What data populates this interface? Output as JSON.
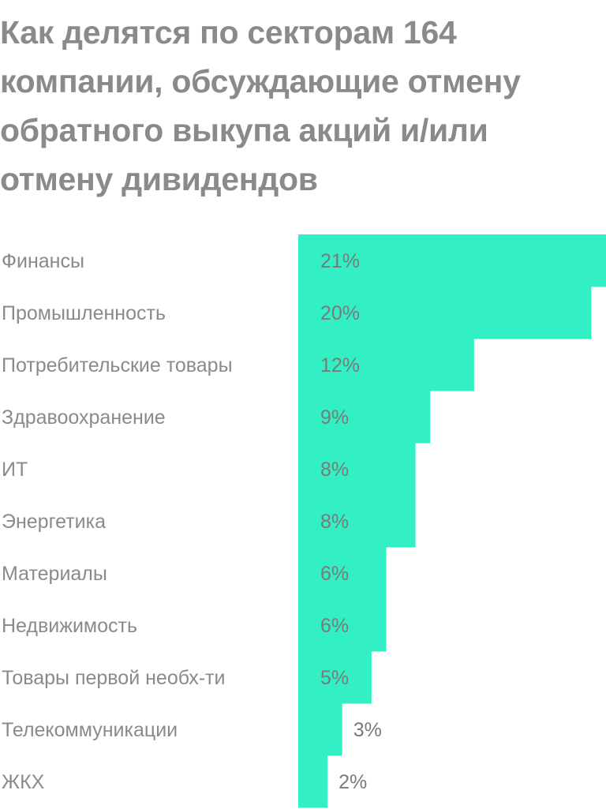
{
  "title": "Как делятся по секторам 164 компании, обсуждающие отмену обратного выкупа акций и/или отмену дивидендов",
  "chart_data": {
    "type": "bar",
    "orientation": "horizontal",
    "title": "Как делятся по секторам 164 компании, обсуждающие отмену обратного выкупа акций и/или отмену дивидендов",
    "categories": [
      "Финансы",
      "Промышленность",
      "Потребительские товары",
      "Здравоохранение",
      "ИТ",
      "Энергетика",
      "Материалы",
      "Недвижимость",
      "Товары первой необх-ти",
      "Телекоммуникации",
      "ЖКХ"
    ],
    "values": [
      21,
      20,
      12,
      9,
      8,
      8,
      6,
      6,
      5,
      3,
      2
    ],
    "value_labels": [
      "21%",
      "20%",
      "12%",
      "9%",
      "8%",
      "8%",
      "6%",
      "6%",
      "5%",
      "3%",
      "2%"
    ],
    "unit": "%",
    "bar_color": "#33f0c4",
    "text_color": "#8a8a8a",
    "grid": false,
    "legend": "none"
  }
}
